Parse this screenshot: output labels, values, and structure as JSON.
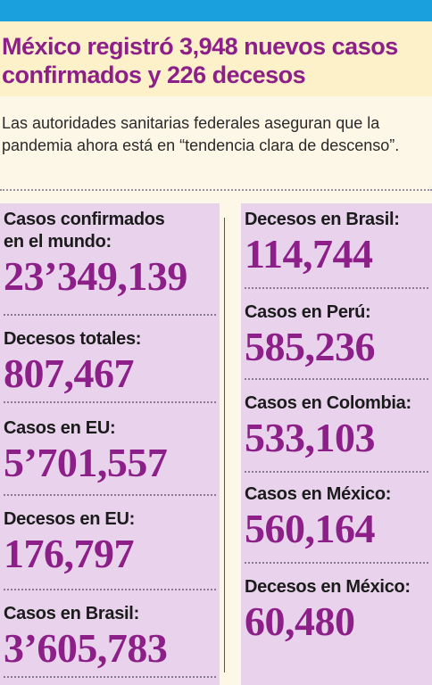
{
  "headline": "México registró 3,948 nuevos casos confirmados y 226 decesos",
  "deck": "Las autoridades sanitarias federales aseguran que la pandemia ahora está en “tendencia clara de descenso”.",
  "left_stats": [
    {
      "label": "Casos confirmados",
      "label2": "en el mundo:",
      "value": "23’349,139"
    },
    {
      "label": "Decesos totales:",
      "value": "807,467"
    },
    {
      "label": "Casos en EU:",
      "value": "5’701,557"
    },
    {
      "label": "Decesos en EU:",
      "value": "176,797"
    },
    {
      "label": "Casos en Brasil:",
      "value": "3’605,783"
    }
  ],
  "right_stats": [
    {
      "label": "Decesos en Brasil:",
      "value": "114,744"
    },
    {
      "label": "Casos en Perú:",
      "value": "585,236"
    },
    {
      "label": "Casos en Colombia:",
      "value": "533,103"
    },
    {
      "label": "Casos en México:",
      "value": "560,164"
    },
    {
      "label": "Decesos en México:",
      "value": "60,480"
    }
  ],
  "colors": {
    "accent": "#8c1f88",
    "topbar": "#1aa0dc",
    "panel": "#e8d2ec",
    "headline_bg": "#fdf1c9"
  }
}
